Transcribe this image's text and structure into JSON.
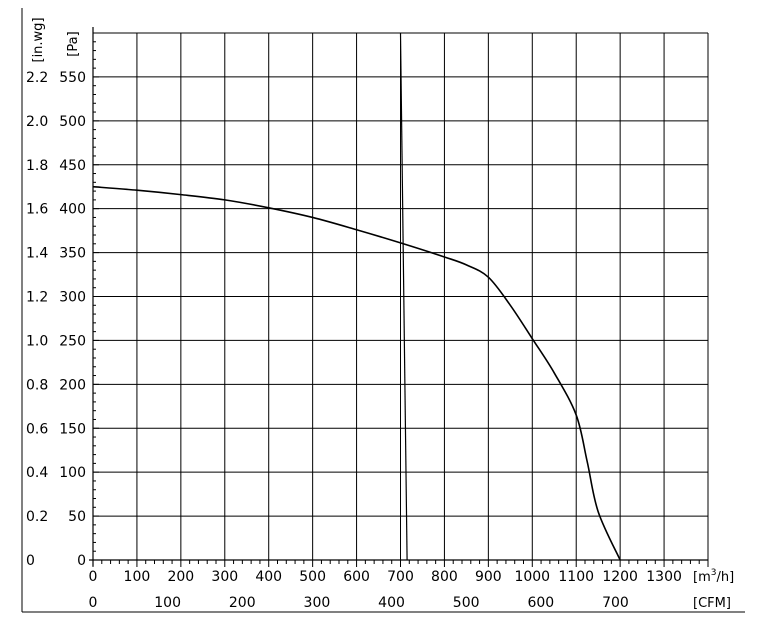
{
  "chart_data": {
    "type": "line",
    "title": "",
    "grid": true,
    "legend": "none",
    "x_axis": {
      "label": "[m³/h]",
      "label_base": "[m",
      "label_sup": "3",
      "label_tail": "/h]",
      "range": [
        0,
        1400
      ],
      "ticks": [
        0,
        100,
        200,
        300,
        400,
        500,
        600,
        700,
        800,
        900,
        1000,
        1100,
        1200,
        1300
      ]
    },
    "x2_axis": {
      "label": "[CFM]",
      "ticks": [
        0,
        100,
        200,
        300,
        400,
        500,
        600,
        700
      ]
    },
    "y_axis": {
      "label": "[Pa]",
      "range": [
        0,
        600
      ],
      "ticks": [
        0,
        50,
        100,
        150,
        200,
        250,
        300,
        350,
        400,
        450,
        500,
        550
      ]
    },
    "y2_axis": {
      "label": "[in.wg]",
      "ticks": [
        "0",
        "0.2",
        "0.4",
        "0.6",
        "0.8",
        "1.0",
        "1.2",
        "1.4",
        "1.6",
        "1.8",
        "2.0",
        "2.2"
      ]
    },
    "series": [
      {
        "x": [
          0,
          100,
          200,
          300,
          400,
          500,
          600,
          700,
          800,
          850,
          900,
          950,
          1000,
          1050,
          1100,
          1125,
          1150,
          1200
        ],
        "y": [
          425,
          421,
          416,
          410,
          401,
          390,
          376,
          361,
          345,
          336,
          322,
          290,
          252,
          213,
          165,
          112,
          55,
          0
        ]
      },
      {
        "x": [
          700,
          715
        ],
        "y": [
          600,
          0
        ]
      }
    ]
  }
}
